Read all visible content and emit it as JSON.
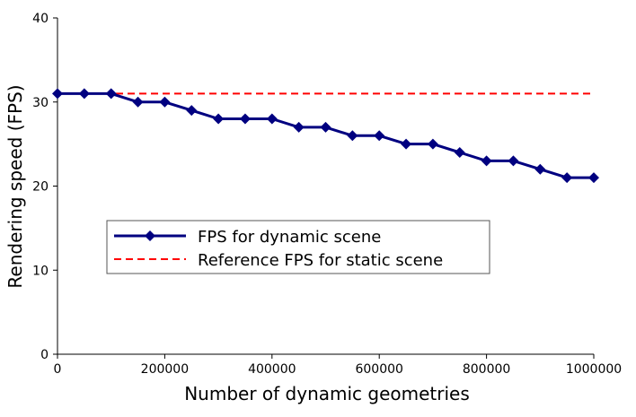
{
  "chart_data": {
    "type": "line",
    "xlabel": "Number of dynamic geometries",
    "ylabel": "Rendering speed (FPS)",
    "xlim": [
      0,
      1000000
    ],
    "ylim": [
      0,
      40
    ],
    "xticks": [
      0,
      200000,
      400000,
      600000,
      800000,
      1000000
    ],
    "xtick_labels": [
      "0",
      "200000",
      "400000",
      "600000",
      "800000",
      "1000000"
    ],
    "yticks": [
      0,
      10,
      20,
      30,
      40
    ],
    "ytick_labels": [
      "0",
      "10",
      "20",
      "30",
      "40"
    ],
    "grid": false,
    "legend_position": "center-left",
    "x": [
      0,
      50000,
      100000,
      150000,
      200000,
      250000,
      300000,
      350000,
      400000,
      450000,
      500000,
      550000,
      600000,
      650000,
      700000,
      750000,
      800000,
      850000,
      900000,
      950000,
      1000000
    ],
    "series": [
      {
        "name": "FPS for dynamic scene",
        "color": "#000080",
        "style": "solid",
        "marker": "diamond",
        "values": [
          31,
          31,
          31,
          30,
          30,
          29,
          28,
          28,
          28,
          27,
          27,
          26,
          26,
          25,
          25,
          24,
          23,
          23,
          22,
          21,
          21
        ]
      },
      {
        "name": "Reference FPS for static scene",
        "color": "#ff0000",
        "style": "dashed",
        "marker": "none",
        "values": [
          31,
          31,
          31,
          31,
          31,
          31,
          31,
          31,
          31,
          31,
          31,
          31,
          31,
          31,
          31,
          31,
          31,
          31,
          31,
          31,
          31
        ]
      }
    ]
  }
}
